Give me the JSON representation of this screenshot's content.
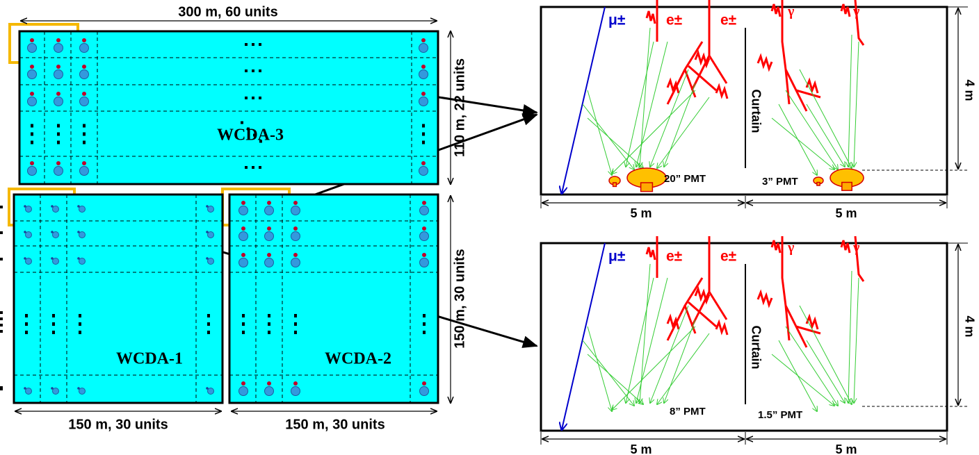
{
  "layout": {
    "top_dimension": "300 m, 60 units",
    "side_dimension": "110 m, 22 units",
    "pond_labels": [
      "WCDA-3",
      "WCDA-1",
      "WCDA-2"
    ],
    "bottom_dimensions": [
      "150 m, 30 units",
      "150 m, 30 units"
    ],
    "right_dimension": "150 m, 30 units"
  },
  "detectors": [
    {
      "particles": [
        "μ±",
        "e±",
        "e±",
        "γ",
        "γ"
      ],
      "curtain": "Curtain",
      "large_pmt": "20” PMT",
      "small_pmt": "3” PMT",
      "height": "4 m",
      "widths": [
        "5 m",
        "5 m"
      ]
    },
    {
      "particles": [
        "μ±",
        "e±",
        "e±",
        "γ",
        "γ"
      ],
      "curtain": "Curtain",
      "large_pmt": "8” PMT",
      "small_pmt": "1.5” PMT",
      "height": "4 m",
      "widths": [
        "5 m",
        "5 m"
      ]
    }
  ]
}
